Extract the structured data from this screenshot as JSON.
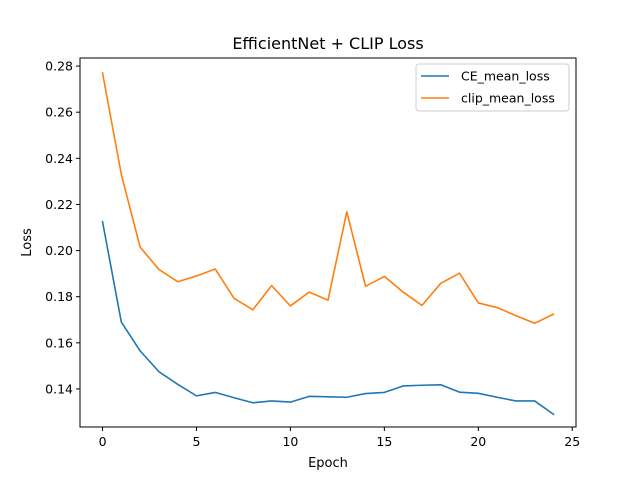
{
  "chart_data": {
    "type": "line",
    "title": "EfficientNet + CLIP Loss",
    "xlabel": "Epoch",
    "ylabel": "Loss",
    "xlim": [
      -1.2,
      25.2
    ],
    "ylim": [
      0.1235,
      0.2835
    ],
    "xticks": [
      0,
      5,
      10,
      15,
      20,
      25
    ],
    "yticks": [
      0.14,
      0.16,
      0.18,
      0.2,
      0.22,
      0.24,
      0.26,
      0.28
    ],
    "grid": false,
    "legend_position": "top-right",
    "x": [
      0,
      1,
      2,
      3,
      4,
      5,
      6,
      7,
      8,
      9,
      10,
      11,
      12,
      13,
      14,
      15,
      16,
      17,
      18,
      19,
      20,
      21,
      22,
      23,
      24
    ],
    "series": [
      {
        "name": "CE_mean_loss",
        "color": "#1f77b4",
        "values": [
          0.2125,
          0.169,
          0.1565,
          0.1475,
          0.142,
          0.137,
          0.1385,
          0.1362,
          0.134,
          0.1348,
          0.1343,
          0.1368,
          0.1366,
          0.1364,
          0.138,
          0.1385,
          0.1413,
          0.1416,
          0.1418,
          0.1386,
          0.1381,
          0.1364,
          0.1348,
          0.1348,
          0.129
        ]
      },
      {
        "name": "clip_mean_loss",
        "color": "#ff7f0e",
        "values": [
          0.277,
          0.233,
          0.2015,
          0.1918,
          0.1865,
          0.189,
          0.192,
          0.1793,
          0.1743,
          0.1848,
          0.176,
          0.182,
          0.1785,
          0.2168,
          0.1845,
          0.1888,
          0.182,
          0.1762,
          0.1858,
          0.1902,
          0.1773,
          0.1753,
          0.1718,
          0.1685,
          0.1724
        ]
      }
    ]
  }
}
